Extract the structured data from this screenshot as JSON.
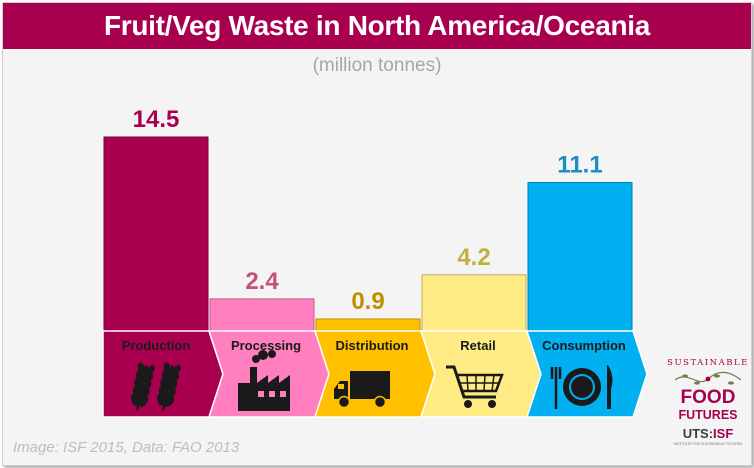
{
  "title": "Fruit/Veg Waste in North America/Oceania",
  "subtitle": "(million tonnes)",
  "credit": "Image: ISF 2015, Data: FAO 2013",
  "logo": {
    "top_text": "SUSTAINABLE",
    "food": "FOOD",
    "futures": "FUTURES",
    "uts_prefix": "UTS:",
    "uts_suffix": "ISF",
    "tagline": "INSTITUTE FOR SUSTAINABLE FUTURES"
  },
  "colors": {
    "title_bg": "#a8004f",
    "production": "#a8004f",
    "processing": "#ff7fbf",
    "distribution": "#ffc000",
    "retail": "#ffeb84",
    "consumption": "#00b0f0"
  },
  "chart_data": {
    "type": "bar",
    "categories": [
      "Production",
      "Processing",
      "Distribution",
      "Retail",
      "Consumption"
    ],
    "values": [
      14.5,
      2.4,
      0.9,
      4.2,
      11.1
    ],
    "value_labels": [
      "14.5",
      "2.4",
      "0.9",
      "4.2",
      "11.1"
    ],
    "icons": [
      "wheat-icon",
      "factory-icon",
      "truck-icon",
      "shopping-cart-icon",
      "plate-fork-knife-icon"
    ],
    "label_colors": [
      "#a8004f",
      "#c8507e",
      "#c09000",
      "#c0b040",
      "#1a90c0"
    ],
    "bar_colors": [
      "#a8004f",
      "#ff7fbf",
      "#ffc000",
      "#ffeb84",
      "#00b0f0"
    ],
    "ylim": [
      0,
      14.5
    ]
  }
}
